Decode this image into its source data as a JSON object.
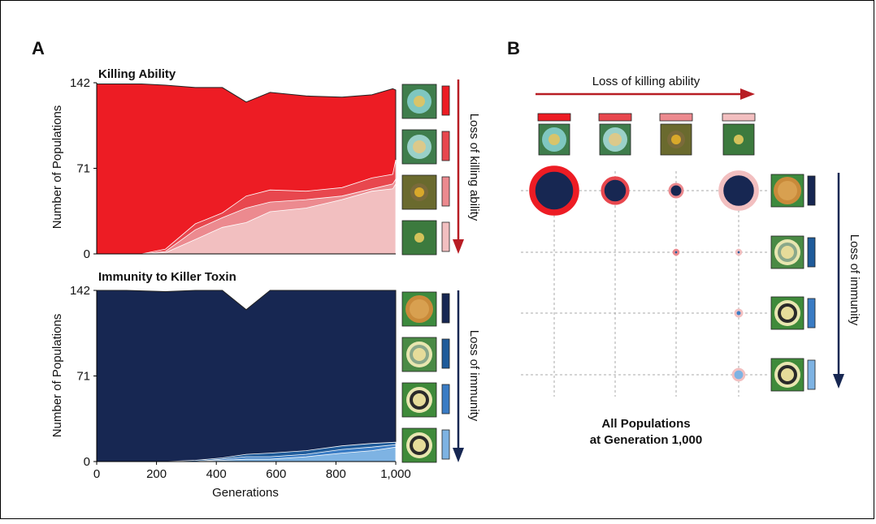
{
  "panel_a_letter": "A",
  "panel_b_letter": "B",
  "colors": {
    "killing": [
      "#ED1C24",
      "#E8474E",
      "#EC8A8F",
      "#F2BFC0"
    ],
    "immunity": [
      "#172752",
      "#1F5B9A",
      "#3A7CC4",
      "#7EB3E3"
    ],
    "thumb_killer_bg": "#3d7f4a",
    "thumb_immunity_bg": "#4c8d3a"
  },
  "chart_data": [
    {
      "type": "area",
      "title": "Killing Ability",
      "xlabel": "",
      "ylabel": "Number of Populations",
      "x": [
        0,
        100,
        150,
        230,
        330,
        420,
        500,
        580,
        700,
        820,
        920,
        990,
        1000
      ],
      "xlim": [
        0,
        1000
      ],
      "ylim": [
        0,
        142
      ],
      "yticks": [
        "0",
        "71",
        "142"
      ],
      "xticks": [
        "0",
        "200",
        "400",
        "600",
        "800",
        "1,000"
      ],
      "series": [
        {
          "values": [
            141,
            141,
            141,
            140,
            138,
            138,
            126,
            134,
            131,
            130,
            132,
            137,
            136
          ]
        },
        {
          "values": [
            141,
            141,
            141,
            140,
            138,
            138,
            126,
            134,
            131,
            130,
            132,
            137,
            136
          ]
        },
        {
          "values": [
            0,
            0,
            0,
            4,
            25,
            34,
            48,
            53,
            52,
            55,
            63,
            66,
            78
          ]
        },
        {
          "values": [
            0,
            0,
            0,
            2,
            20,
            30,
            38,
            43,
            45,
            48,
            54,
            58,
            62
          ]
        },
        {
          "values": [
            0,
            0,
            0,
            1,
            12,
            22,
            26,
            35,
            38,
            45,
            52,
            54,
            58
          ]
        }
      ]
    },
    {
      "type": "area",
      "title": "Immunity to Killer Toxin",
      "xlabel": "Generations",
      "ylabel": "Number of Populations",
      "x": [
        0,
        100,
        230,
        330,
        420,
        500,
        580,
        700,
        820,
        920,
        1000
      ],
      "xlim": [
        0,
        1000
      ],
      "ylim": [
        0,
        142
      ],
      "yticks": [
        "0",
        "71",
        "142"
      ],
      "xticks": [
        "0",
        "200",
        "400",
        "600",
        "800",
        "1,000"
      ],
      "series": [
        {
          "values": [
            142,
            142,
            141,
            142,
            142,
            126,
            142,
            142,
            142,
            142,
            142
          ]
        },
        {
          "values": [
            0,
            0,
            0,
            1,
            3,
            6,
            7,
            9,
            13,
            15,
            16
          ]
        },
        {
          "values": [
            0,
            0,
            0,
            0,
            2,
            4,
            4,
            6,
            10,
            12,
            14
          ]
        },
        {
          "values": [
            0,
            0,
            0,
            0,
            1,
            2,
            2,
            4,
            7,
            9,
            12
          ]
        }
      ]
    },
    {
      "type": "scatter",
      "title": "",
      "xlabel": "Loss of killing ability",
      "ylabel": "Loss of immunity",
      "columns": 4,
      "rows": 4,
      "points": [
        {
          "col": 0,
          "row": 0,
          "size": 92
        },
        {
          "col": 1,
          "row": 0,
          "size": 30
        },
        {
          "col": 2,
          "row": 0,
          "size": 8
        },
        {
          "col": 3,
          "row": 0,
          "size": 60
        },
        {
          "col": 2,
          "row": 1,
          "size": 1
        },
        {
          "col": 3,
          "row": 1,
          "size": 1
        },
        {
          "col": 3,
          "row": 2,
          "size": 2
        },
        {
          "col": 3,
          "row": 3,
          "size": 6
        }
      ]
    }
  ],
  "loss_killing_label": "Loss of killing ability",
  "loss_immunity_label": "Loss of immunity",
  "caption_line1": "All Populations",
  "caption_line2": "at Generation 1,000"
}
